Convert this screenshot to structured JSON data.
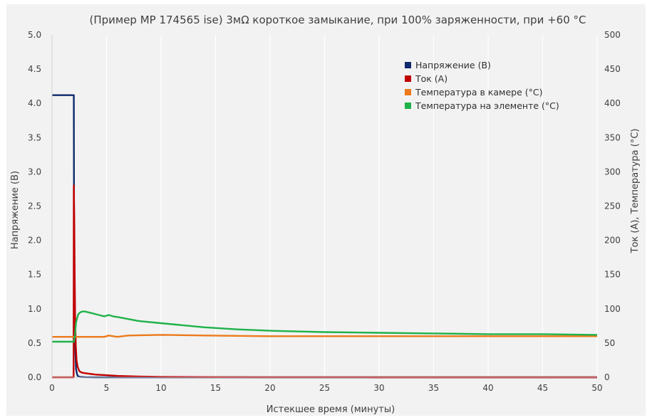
{
  "chart_data": {
    "type": "line",
    "title": "(Пример MP 174565 ise) 3мΩ короткое замыкание, при 100% заряженности, при +60 °C",
    "xlabel": "Истекшее время (минуты)",
    "ylabel_left": "Напряжение (В)",
    "ylabel_right": "Ток (А), Температура (°C)",
    "xlim": [
      0,
      50
    ],
    "ylim_left": [
      0,
      5
    ],
    "ylim_right": [
      0,
      500
    ],
    "x_ticks": [
      "0",
      "5",
      "10",
      "15",
      "20",
      "25",
      "30",
      "35",
      "40",
      "45",
      "50"
    ],
    "y_left_ticks": [
      "0.0",
      "0.5",
      "1.0",
      "1.5",
      "2.0",
      "2.5",
      "3.0",
      "3.5",
      "4.0",
      "4.5",
      "5.0"
    ],
    "y_right_ticks": [
      "0",
      "50",
      "100",
      "150",
      "200",
      "250",
      "300",
      "350",
      "400",
      "450",
      "500"
    ],
    "grid": "vertical",
    "legend_position": "top-right",
    "series": [
      {
        "name": "Напряжение (В)",
        "axis": "left",
        "color": "#0f2a6b",
        "x": [
          0,
          2.0,
          2.02,
          2.05,
          2.1,
          2.15,
          2.2,
          2.3,
          2.4,
          2.6,
          3.0,
          4.0,
          50
        ],
        "y": [
          4.12,
          4.12,
          2.2,
          1.3,
          0.72,
          0.35,
          0.12,
          0.04,
          0.015,
          0.005,
          0.002,
          0.0,
          0.0
        ]
      },
      {
        "name": "Ток (А)",
        "axis": "right",
        "color": "#c00000",
        "x": [
          0,
          1.98,
          2.0,
          2.04,
          2.08,
          2.12,
          2.18,
          2.25,
          2.35,
          2.5,
          2.7,
          3.0,
          4.0,
          5.0,
          6.0,
          8.0,
          10.0,
          15.0,
          20.0,
          30.0,
          50.0
        ],
        "y": [
          0,
          0,
          280,
          230,
          150,
          90,
          45,
          25,
          15,
          9,
          7,
          6,
          4,
          3,
          2,
          1,
          0.5,
          0.2,
          0.1,
          0,
          0
        ]
      },
      {
        "name": "Температура в камере (°C)",
        "axis": "right",
        "color": "#ec7a1c",
        "x": [
          0,
          4.8,
          5.2,
          5.6,
          6.0,
          7.0,
          10.0,
          14.0,
          20.0,
          30.0,
          40.0,
          50.0
        ],
        "y": [
          59,
          59,
          61,
          60,
          59,
          61,
          62,
          61,
          60,
          60,
          60,
          60
        ]
      },
      {
        "name": "Температура на элементе (°C)",
        "axis": "right",
        "color": "#1fb24a",
        "x": [
          0,
          2.0,
          2.1,
          2.2,
          2.4,
          2.6,
          2.8,
          3.0,
          3.3,
          3.8,
          4.3,
          4.8,
          5.2,
          5.6,
          6.0,
          7.0,
          8.0,
          10.0,
          12.0,
          14.0,
          17.0,
          20.0,
          25.0,
          30.0,
          35.0,
          40.0,
          45.0,
          50.0
        ],
        "y": [
          52,
          52,
          60,
          80,
          92,
          95,
          96,
          96,
          95,
          93,
          91,
          89,
          91,
          89,
          88,
          85,
          82,
          79,
          76,
          73,
          70,
          68,
          66,
          65,
          64,
          63,
          63,
          62
        ]
      }
    ]
  }
}
